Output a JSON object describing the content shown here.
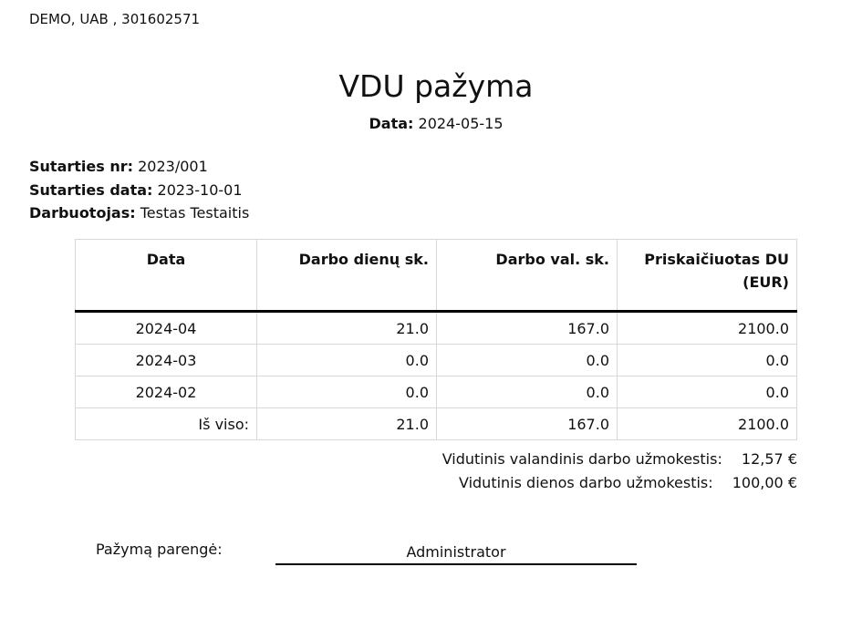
{
  "company": "DEMO, UAB , 301602571",
  "title": "VDU pažyma",
  "date": {
    "label": "Data:",
    "value": "2024-05-15"
  },
  "meta": [
    {
      "label": "Sutarties nr:",
      "value": "2023/001"
    },
    {
      "label": "Sutarties data:",
      "value": "2023-10-01"
    },
    {
      "label": "Darbuotojas:",
      "value": "Testas Testaitis"
    }
  ],
  "table": {
    "headers": [
      "Data",
      "Darbo dienų sk.",
      "Darbo val. sk.",
      "Priskaičiuotas DU (EUR)"
    ],
    "rows": [
      [
        "2024-04",
        "21.0",
        "167.0",
        "2100.0"
      ],
      [
        "2024-03",
        "0.0",
        "0.0",
        "0.0"
      ],
      [
        "2024-02",
        "0.0",
        "0.0",
        "0.0"
      ]
    ],
    "total": [
      "Iš viso:",
      "21.0",
      "167.0",
      "2100.0"
    ]
  },
  "summary": [
    {
      "label": "Vidutinis valandinis darbo užmokestis:",
      "value": "12,57 €"
    },
    {
      "label": "Vidutinis dienos darbo užmokestis:",
      "value": "100,00 €"
    }
  ],
  "prepared": {
    "label": "Pažymą parengė:",
    "name": "Administrator"
  }
}
